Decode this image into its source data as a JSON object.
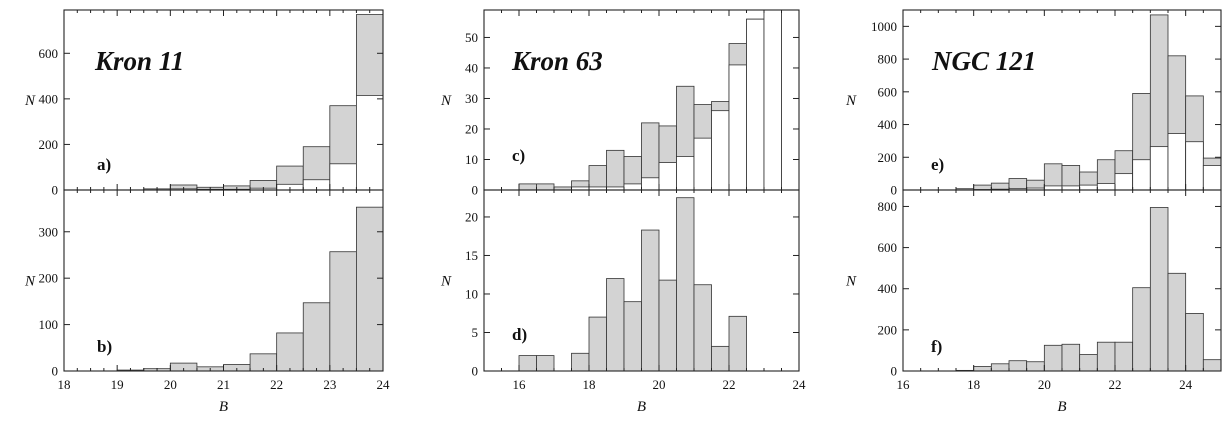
{
  "chart_data": [
    {
      "type": "bar",
      "panel": "a)",
      "title": "Kron 11",
      "ylabel": "N",
      "xlabel": "",
      "xlim": [
        18,
        24
      ],
      "ylim": [
        0,
        790
      ],
      "xticks": [
        18,
        19,
        20,
        21,
        22,
        23,
        24
      ],
      "yticks": [
        0,
        200,
        400,
        600
      ],
      "bin_width": 0.5,
      "bins": [
        {
          "x0": 19.5,
          "total": 5,
          "sub": 0
        },
        {
          "x0": 20.0,
          "total": 22,
          "sub": 5
        },
        {
          "x0": 20.5,
          "total": 12,
          "sub": 3
        },
        {
          "x0": 21.0,
          "total": 18,
          "sub": 3
        },
        {
          "x0": 21.5,
          "total": 42,
          "sub": 8
        },
        {
          "x0": 22.0,
          "total": 105,
          "sub": 25
        },
        {
          "x0": 22.5,
          "total": 190,
          "sub": 45
        },
        {
          "x0": 23.0,
          "total": 370,
          "sub": 115
        },
        {
          "x0": 23.5,
          "total": 770,
          "sub": 415
        }
      ]
    },
    {
      "type": "bar",
      "panel": "b)",
      "title": "",
      "ylabel": "N",
      "xlabel": "B",
      "xlim": [
        18,
        24
      ],
      "ylim": [
        0,
        390
      ],
      "xticks": [
        18,
        19,
        20,
        21,
        22,
        23,
        24
      ],
      "yticks": [
        0,
        100,
        200,
        300
      ],
      "bin_width": 0.5,
      "bins": [
        {
          "x0": 19.0,
          "total": 2
        },
        {
          "x0": 19.5,
          "total": 5
        },
        {
          "x0": 20.0,
          "total": 17
        },
        {
          "x0": 20.5,
          "total": 9
        },
        {
          "x0": 21.0,
          "total": 14
        },
        {
          "x0": 21.5,
          "total": 37
        },
        {
          "x0": 22.0,
          "total": 82
        },
        {
          "x0": 22.5,
          "total": 147
        },
        {
          "x0": 23.0,
          "total": 257
        },
        {
          "x0": 23.5,
          "total": 353
        }
      ]
    },
    {
      "type": "bar",
      "panel": "c)",
      "title": "Kron 63",
      "ylabel": "N",
      "xlabel": "",
      "xlim": [
        15,
        24
      ],
      "ylim": [
        0,
        59
      ],
      "xticks": [
        16,
        18,
        20,
        22,
        24
      ],
      "yticks": [
        0,
        10,
        20,
        30,
        40,
        50
      ],
      "bin_width": 0.5,
      "bins": [
        {
          "x0": 16.0,
          "total": 2,
          "sub": 0
        },
        {
          "x0": 16.5,
          "total": 2,
          "sub": 0
        },
        {
          "x0": 17.0,
          "total": 1,
          "sub": 0
        },
        {
          "x0": 17.5,
          "total": 3,
          "sub": 1
        },
        {
          "x0": 18.0,
          "total": 8,
          "sub": 1
        },
        {
          "x0": 18.5,
          "total": 13,
          "sub": 1
        },
        {
          "x0": 19.0,
          "total": 11,
          "sub": 2
        },
        {
          "x0": 19.5,
          "total": 22,
          "sub": 4
        },
        {
          "x0": 20.0,
          "total": 21,
          "sub": 9
        },
        {
          "x0": 20.5,
          "total": 34,
          "sub": 11
        },
        {
          "x0": 21.0,
          "total": 28,
          "sub": 17
        },
        {
          "x0": 21.5,
          "total": 29,
          "sub": 26
        },
        {
          "x0": 22.0,
          "total": 48,
          "sub": 41
        },
        {
          "x0": 22.5,
          "total": 56,
          "sub": 56
        },
        {
          "x0": 23.0,
          "total": 59,
          "sub": 59
        },
        {
          "x0": 23.5,
          "total": 59,
          "sub": 59
        }
      ]
    },
    {
      "type": "bar",
      "panel": "d)",
      "title": "",
      "ylabel": "N",
      "xlabel": "B",
      "xlim": [
        15,
        24
      ],
      "ylim": [
        0,
        23.5
      ],
      "xticks": [
        16,
        18,
        20,
        22,
        24
      ],
      "yticks": [
        0,
        5,
        10,
        15,
        20
      ],
      "bin_width": 0.5,
      "bins": [
        {
          "x0": 16.0,
          "total": 2
        },
        {
          "x0": 16.5,
          "total": 2
        },
        {
          "x0": 17.5,
          "total": 2.3
        },
        {
          "x0": 18.0,
          "total": 7
        },
        {
          "x0": 18.5,
          "total": 12
        },
        {
          "x0": 19.0,
          "total": 9
        },
        {
          "x0": 19.5,
          "total": 18.3
        },
        {
          "x0": 20.0,
          "total": 11.8
        },
        {
          "x0": 20.5,
          "total": 22.5
        },
        {
          "x0": 21.0,
          "total": 11.2
        },
        {
          "x0": 21.5,
          "total": 3.2
        },
        {
          "x0": 22.0,
          "total": 7.1
        }
      ]
    },
    {
      "type": "bar",
      "panel": "e)",
      "title": "NGC 121",
      "ylabel": "N",
      "xlabel": "",
      "xlim": [
        16,
        25
      ],
      "ylim": [
        0,
        1100
      ],
      "xticks": [
        16,
        18,
        20,
        22,
        24
      ],
      "yticks": [
        0,
        200,
        400,
        600,
        800,
        1000
      ],
      "bin_width": 0.5,
      "bins": [
        {
          "x0": 17.5,
          "total": 8,
          "sub": 0
        },
        {
          "x0": 18.0,
          "total": 30,
          "sub": 3
        },
        {
          "x0": 18.5,
          "total": 42,
          "sub": 5
        },
        {
          "x0": 19.0,
          "total": 70,
          "sub": 8
        },
        {
          "x0": 19.5,
          "total": 60,
          "sub": 12
        },
        {
          "x0": 20.0,
          "total": 160,
          "sub": 25
        },
        {
          "x0": 20.5,
          "total": 150,
          "sub": 25
        },
        {
          "x0": 21.0,
          "total": 110,
          "sub": 30
        },
        {
          "x0": 21.5,
          "total": 185,
          "sub": 40
        },
        {
          "x0": 22.0,
          "total": 240,
          "sub": 100
        },
        {
          "x0": 22.5,
          "total": 590,
          "sub": 185
        },
        {
          "x0": 23.0,
          "total": 1070,
          "sub": 265
        },
        {
          "x0": 23.5,
          "total": 820,
          "sub": 345
        },
        {
          "x0": 24.0,
          "total": 575,
          "sub": 295
        },
        {
          "x0": 24.5,
          "total": 195,
          "sub": 150
        }
      ]
    },
    {
      "type": "bar",
      "panel": "f)",
      "title": "",
      "ylabel": "N",
      "xlabel": "B",
      "xlim": [
        16,
        25
      ],
      "ylim": [
        0,
        880
      ],
      "xticks": [
        16,
        18,
        20,
        22,
        24
      ],
      "yticks": [
        0,
        200,
        400,
        600,
        800
      ],
      "bin_width": 0.5,
      "bins": [
        {
          "x0": 17.5,
          "total": 3
        },
        {
          "x0": 18.0,
          "total": 22
        },
        {
          "x0": 18.5,
          "total": 35
        },
        {
          "x0": 19.0,
          "total": 50
        },
        {
          "x0": 19.5,
          "total": 45
        },
        {
          "x0": 20.0,
          "total": 125
        },
        {
          "x0": 20.5,
          "total": 130
        },
        {
          "x0": 21.0,
          "total": 80
        },
        {
          "x0": 21.5,
          "total": 140
        },
        {
          "x0": 22.0,
          "total": 140
        },
        {
          "x0": 22.5,
          "total": 405
        },
        {
          "x0": 23.0,
          "total": 795
        },
        {
          "x0": 23.5,
          "total": 475
        },
        {
          "x0": 24.0,
          "total": 280
        },
        {
          "x0": 24.5,
          "total": 55
        }
      ]
    }
  ]
}
